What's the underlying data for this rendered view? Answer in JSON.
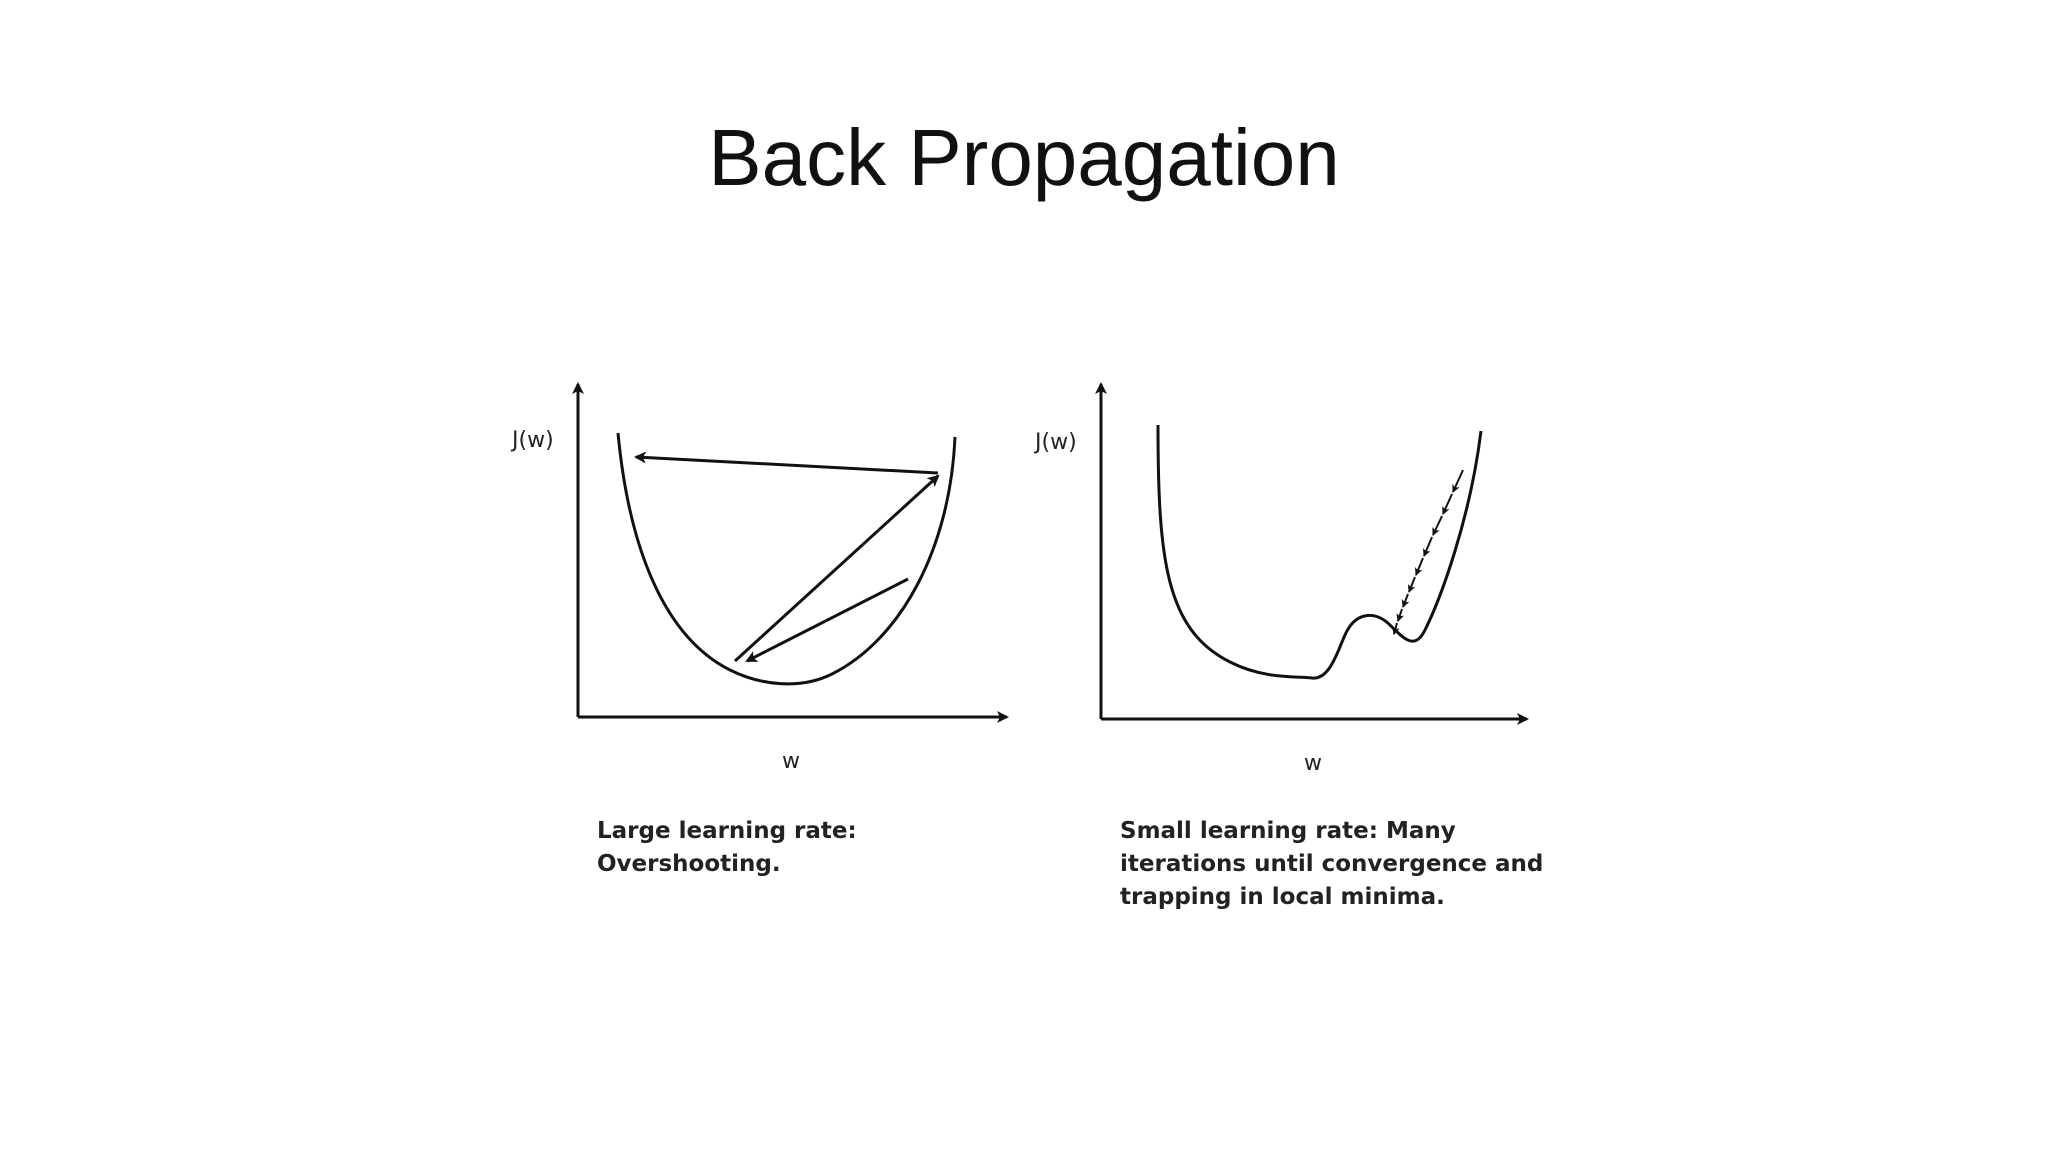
{
  "slide": {
    "title": "Back Propagation"
  },
  "panels": [
    {
      "y_label": "J(w)",
      "x_label": "w",
      "caption": "Large learning rate: Overshooting."
    },
    {
      "y_label": "J(w)",
      "x_label": "w",
      "caption": "Small learning rate: Many iterations until convergence and trapping in local minima."
    }
  ],
  "colors": {
    "ink": "#111111",
    "background": "#ffffff"
  }
}
